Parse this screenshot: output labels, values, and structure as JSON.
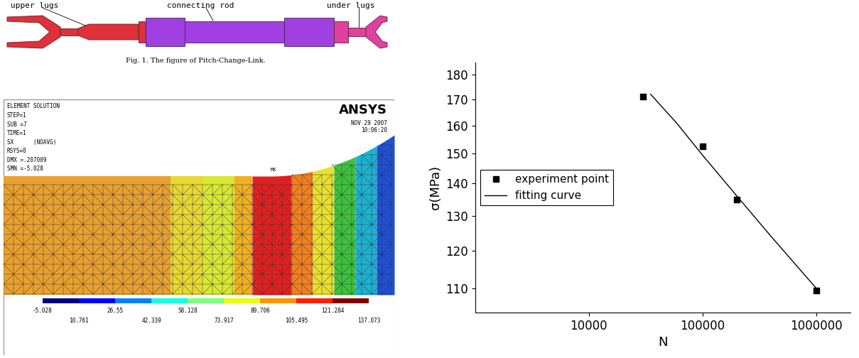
{
  "figure_1": {
    "labels": [
      "upper lugs",
      "connecting rod",
      "under lugs"
    ],
    "caption": "Fig. 1. The figure of Pitch-Change-Link."
  },
  "contour_plot": {
    "header": [
      "ELEMENT SOLUTION",
      "STEP=1",
      "SUB =7",
      "TIME=1",
      "SX      (NOAVG)",
      "RSYS=0",
      "DMX =.207009",
      "SMN =-5.028"
    ],
    "logo": "ANSYS",
    "date": "NOV 29 2007",
    "time": "10:06:20",
    "max_marker": "MX",
    "legend_values": [
      -5.028,
      10.761,
      26.55,
      42.339,
      58.128,
      73.917,
      89.706,
      105.495,
      121.284,
      137.073
    ]
  },
  "chart_data": {
    "type": "scatter",
    "xlabel": "N",
    "ylabel": "σ(MPa)",
    "log": true,
    "xlim": [
      1000,
      2000000
    ],
    "ylim": [
      104,
      185
    ],
    "xticks": [
      10000,
      100000,
      1000000
    ],
    "yticks": [
      110,
      120,
      130,
      140,
      150,
      160,
      170,
      180
    ],
    "legend": "center left",
    "series": [
      {
        "name": "experiment point",
        "type": "scatter",
        "color": "#000000",
        "marker": "square",
        "x": [
          30000,
          100000,
          200000,
          1000000
        ],
        "values": [
          171,
          152.5,
          135,
          109.5
        ]
      },
      {
        "name": "fitting curve",
        "type": "line",
        "color": "#000000",
        "line_style": "solid",
        "x": [
          35000,
          60000,
          100000,
          200000,
          400000,
          1000000
        ],
        "values": [
          172,
          160.7,
          149.5,
          136.1,
          124,
          110
        ]
      }
    ]
  }
}
